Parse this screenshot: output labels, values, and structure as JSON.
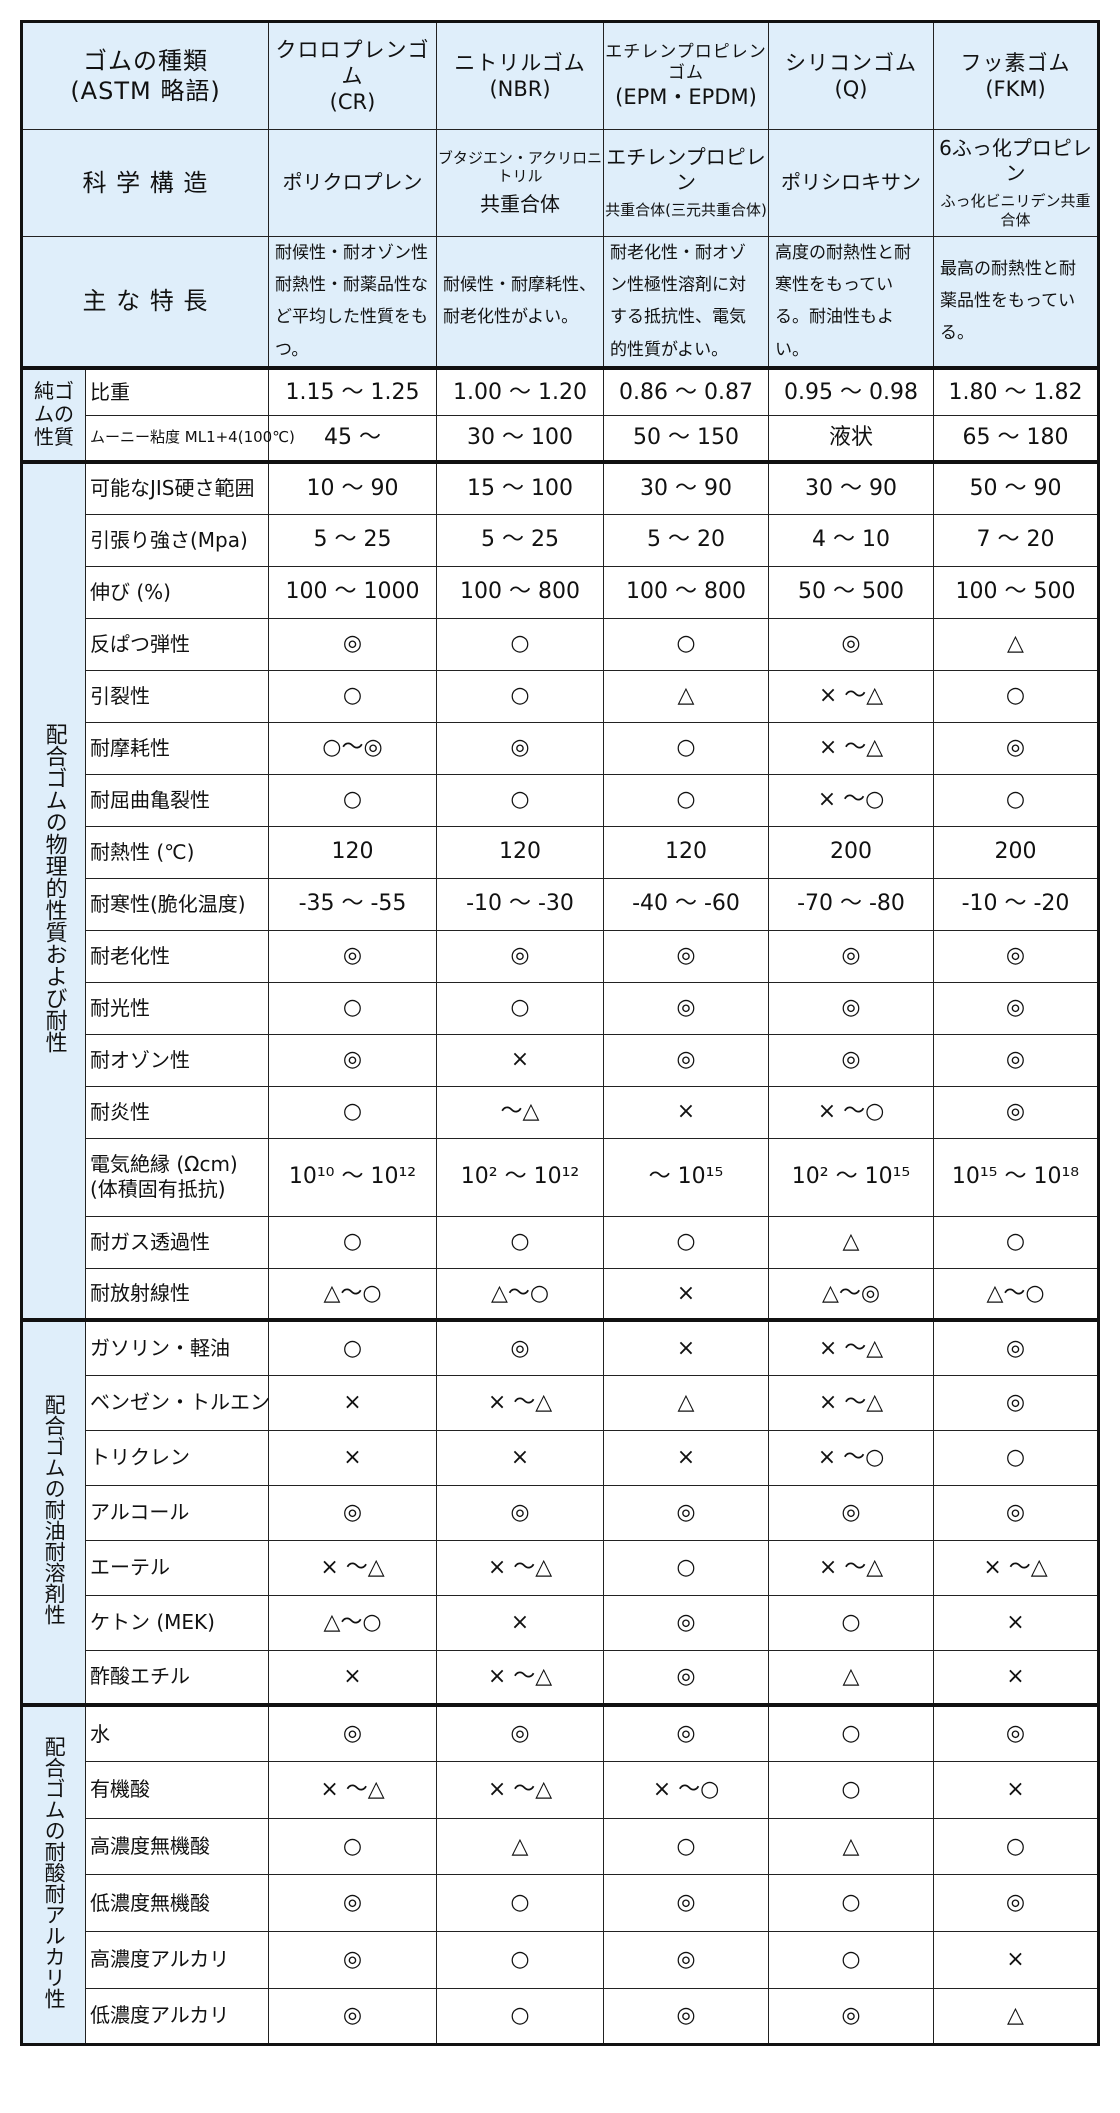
{
  "header": {
    "type_label": [
      "ゴムの種類",
      "(ASTM 略語)"
    ],
    "structure_label": "科 学 構 造",
    "features_label": "主 な 特 長",
    "rubbers": [
      {
        "name": "クロロプレンゴム",
        "abbr": "(CR)",
        "structure": [
          "ポリクロプレン"
        ],
        "features": "耐候性・耐オゾン性耐熱性・耐薬品性など平均した性質をもつ。"
      },
      {
        "name": "ニトリルゴム",
        "abbr": "(NBR)",
        "structure": [
          "ブタジエン・アクリロニトリル",
          "共重合体"
        ],
        "features": "耐候性・耐摩耗性、耐老化性がよい。"
      },
      {
        "name": "エチレンプロピレンゴム",
        "abbr": "(EPM・EPDM)",
        "structure": [
          "エチレンプロピレン",
          "共重合体(三元共重合体)"
        ],
        "features": "耐老化性・耐オゾン性極性溶剤に対する抵抗性、電気的性質がよい。"
      },
      {
        "name": "シリコンゴム",
        "abbr": "(Q)",
        "structure": [
          "ポリシロキサン"
        ],
        "features": "高度の耐熱性と耐寒性をもっている。耐油性もよい。"
      },
      {
        "name": "フッ素ゴム",
        "abbr": "(FKM)",
        "structure": [
          "6ふっ化プロピレン",
          "ふっ化ビニリデン共重合体"
        ],
        "features": "最高の耐熱性と耐薬品性をもっている。"
      }
    ]
  },
  "sections": [
    {
      "group": "純ゴムの性質",
      "rows": [
        {
          "label": "比重",
          "values": [
            "1.15 ～ 1.25",
            "1.00 ～ 1.20",
            "0.86 ～ 0.87",
            "0.95 ～ 0.98",
            "1.80 ～ 1.82"
          ]
        },
        {
          "label": "ムーニー粘度 ML1+4(100℃)",
          "values": [
            "45 ～",
            "30 ～ 100",
            "50 ～ 150",
            "液状",
            "65 ～ 180"
          ]
        }
      ]
    },
    {
      "group": "配合ゴムの物理的性質および耐性",
      "rows": [
        {
          "label": "可能なJIS硬さ範囲",
          "values": [
            "10 ～ 90",
            "15 ～ 100",
            "30 ～ 90",
            "30 ～ 90",
            "50 ～ 90"
          ]
        },
        {
          "label": "引張り強さ(Mpa)",
          "values": [
            "5 ～ 25",
            "5 ～ 25",
            "5 ～ 20",
            "4 ～ 10",
            "7 ～ 20"
          ]
        },
        {
          "label": "伸び (%)",
          "values": [
            "100 ～ 1000",
            "100 ～ 800",
            "100 ～ 800",
            "50 ～ 500",
            "100 ～ 500"
          ]
        },
        {
          "label": "反ぱつ弾性",
          "values": [
            "◎",
            "○",
            "○",
            "◎",
            "△"
          ]
        },
        {
          "label": "引裂性",
          "values": [
            "○",
            "○",
            "△",
            "× ～△",
            "○"
          ]
        },
        {
          "label": "耐摩耗性",
          "values": [
            "○～◎",
            "◎",
            "○",
            "× ～△",
            "◎"
          ]
        },
        {
          "label": "耐屈曲亀裂性",
          "values": [
            "○",
            "○",
            "○",
            "× ～○",
            "○"
          ]
        },
        {
          "label": "耐熱性 (℃)",
          "values": [
            "120",
            "120",
            "120",
            "200",
            "200"
          ]
        },
        {
          "label": "耐寒性(脆化温度)",
          "values": [
            "-35 ～ -55",
            "-10 ～ -30",
            "-40 ～ -60",
            "-70 ～ -80",
            "-10 ～ -20"
          ]
        },
        {
          "label": "耐老化性",
          "values": [
            "◎",
            "◎",
            "◎",
            "◎",
            "◎"
          ]
        },
        {
          "label": "耐光性",
          "values": [
            "○",
            "○",
            "◎",
            "◎",
            "◎"
          ]
        },
        {
          "label": "耐オゾン性",
          "values": [
            "◎",
            "×",
            "◎",
            "◎",
            "◎"
          ]
        },
        {
          "label": "耐炎性",
          "values": [
            "○",
            "～△",
            "×",
            "× ～○",
            "◎"
          ]
        },
        {
          "label": "電気絶縁 (Ωcm)",
          "sublabel": "(体積固有抵抗)",
          "tall": true,
          "values": [
            "10¹⁰ ～ 10¹²",
            "10² ～ 10¹²",
            "～ 10¹⁵",
            "10²  ～ 10¹⁵",
            "10¹⁵ ～ 10¹⁸"
          ]
        },
        {
          "label": "耐ガス透過性",
          "values": [
            "○",
            "○",
            "○",
            "△",
            "○"
          ]
        },
        {
          "label": "耐放射線性",
          "values": [
            "△～○",
            "△～○",
            "×",
            "△～◎",
            "△～○"
          ]
        }
      ]
    },
    {
      "group": "配合ゴムの耐油耐溶剤性",
      "rows": [
        {
          "label": "ガソリン・軽油",
          "values": [
            "○",
            "◎",
            "×",
            "× ～△",
            "◎"
          ]
        },
        {
          "label": "ベンゼン・トルエン",
          "values": [
            "×",
            "× ～△",
            "△",
            "× ～△",
            "◎"
          ]
        },
        {
          "label": "トリクレン",
          "values": [
            "×",
            "×",
            "×",
            "× ～○",
            "○"
          ]
        },
        {
          "label": "アルコール",
          "values": [
            "◎",
            "◎",
            "◎",
            "◎",
            "◎"
          ]
        },
        {
          "label": "エーテル",
          "values": [
            "× ～△",
            "× ～△",
            "○",
            "× ～△",
            "× ～△"
          ]
        },
        {
          "label": "ケトン (MEK)",
          "values": [
            "△～○",
            "×",
            "◎",
            "○",
            "×"
          ]
        },
        {
          "label": "酢酸エチル",
          "values": [
            "×",
            "× ～△",
            "◎",
            "△",
            "×"
          ]
        }
      ]
    },
    {
      "group": "配合ゴムの耐酸耐アルカリ性",
      "rows": [
        {
          "label": "水",
          "values": [
            "◎",
            "◎",
            "◎",
            "○",
            "◎"
          ]
        },
        {
          "label": "有機酸",
          "values": [
            "× ～△",
            "× ～△",
            "× ～○",
            "○",
            "×"
          ]
        },
        {
          "label": "高濃度無機酸",
          "values": [
            "○",
            "△",
            "○",
            "△",
            "○"
          ]
        },
        {
          "label": "低濃度無機酸",
          "values": [
            "◎",
            "○",
            "◎",
            "○",
            "◎"
          ]
        },
        {
          "label": "高濃度アルカリ",
          "values": [
            "◎",
            "○",
            "◎",
            "○",
            "×"
          ]
        },
        {
          "label": "低濃度アルカリ",
          "values": [
            "◎",
            "○",
            "◎",
            "◎",
            "△"
          ]
        }
      ]
    }
  ],
  "colors": {
    "header_bg": "#dfeefa",
    "border": "#111111"
  }
}
